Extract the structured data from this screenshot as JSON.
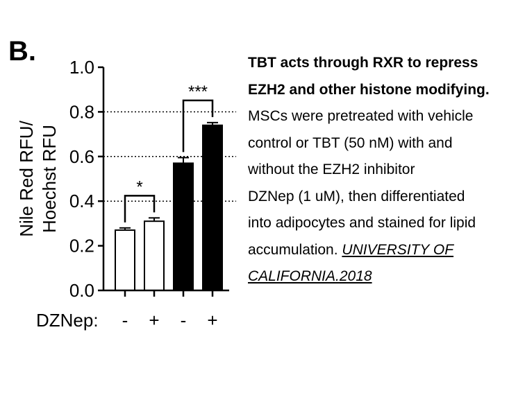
{
  "panel_label": "B.",
  "chart_data": {
    "type": "bar",
    "ylabel_lines": [
      "Nile Red RFU/",
      "Hoechst RFU"
    ],
    "ylim": [
      0.0,
      1.0
    ],
    "yticks": [
      "0.0",
      "0.2",
      "0.4",
      "0.6",
      "0.8",
      "1.0"
    ],
    "ytick_values": [
      0.0,
      0.2,
      0.4,
      0.6,
      0.8,
      1.0
    ],
    "gridlines_dotted": [
      0.4,
      0.6,
      0.8
    ],
    "x_row_label": "DZNep:",
    "categories": [
      "-",
      "+",
      "-",
      "+"
    ],
    "values": [
      0.27,
      0.31,
      0.57,
      0.74
    ],
    "errors": [
      0.01,
      0.015,
      0.025,
      0.012
    ],
    "bar_fill": [
      "#ffffff",
      "#ffffff",
      "#000000",
      "#000000"
    ],
    "significance": [
      {
        "label": "*",
        "from": 0,
        "to": 1
      },
      {
        "label": "***",
        "from": 2,
        "to": 3
      }
    ]
  },
  "caption": {
    "bold_lines": [
      "TBT acts through RXR to repress",
      "EZH2 and other histone modifying."
    ],
    "lines": [
      "MSCs were pretreated with vehicle",
      "control or TBT (50 nM) with and",
      "without the EZH2 inhibitor",
      "DZNep (1 uM), then differentiated",
      "into adipocytes and stained for lipid"
    ],
    "last_line_prefix": "accumulation. ",
    "source_part1": "UNIVERSITY OF ",
    "source_part2": "CALIFORNIA.2018"
  }
}
